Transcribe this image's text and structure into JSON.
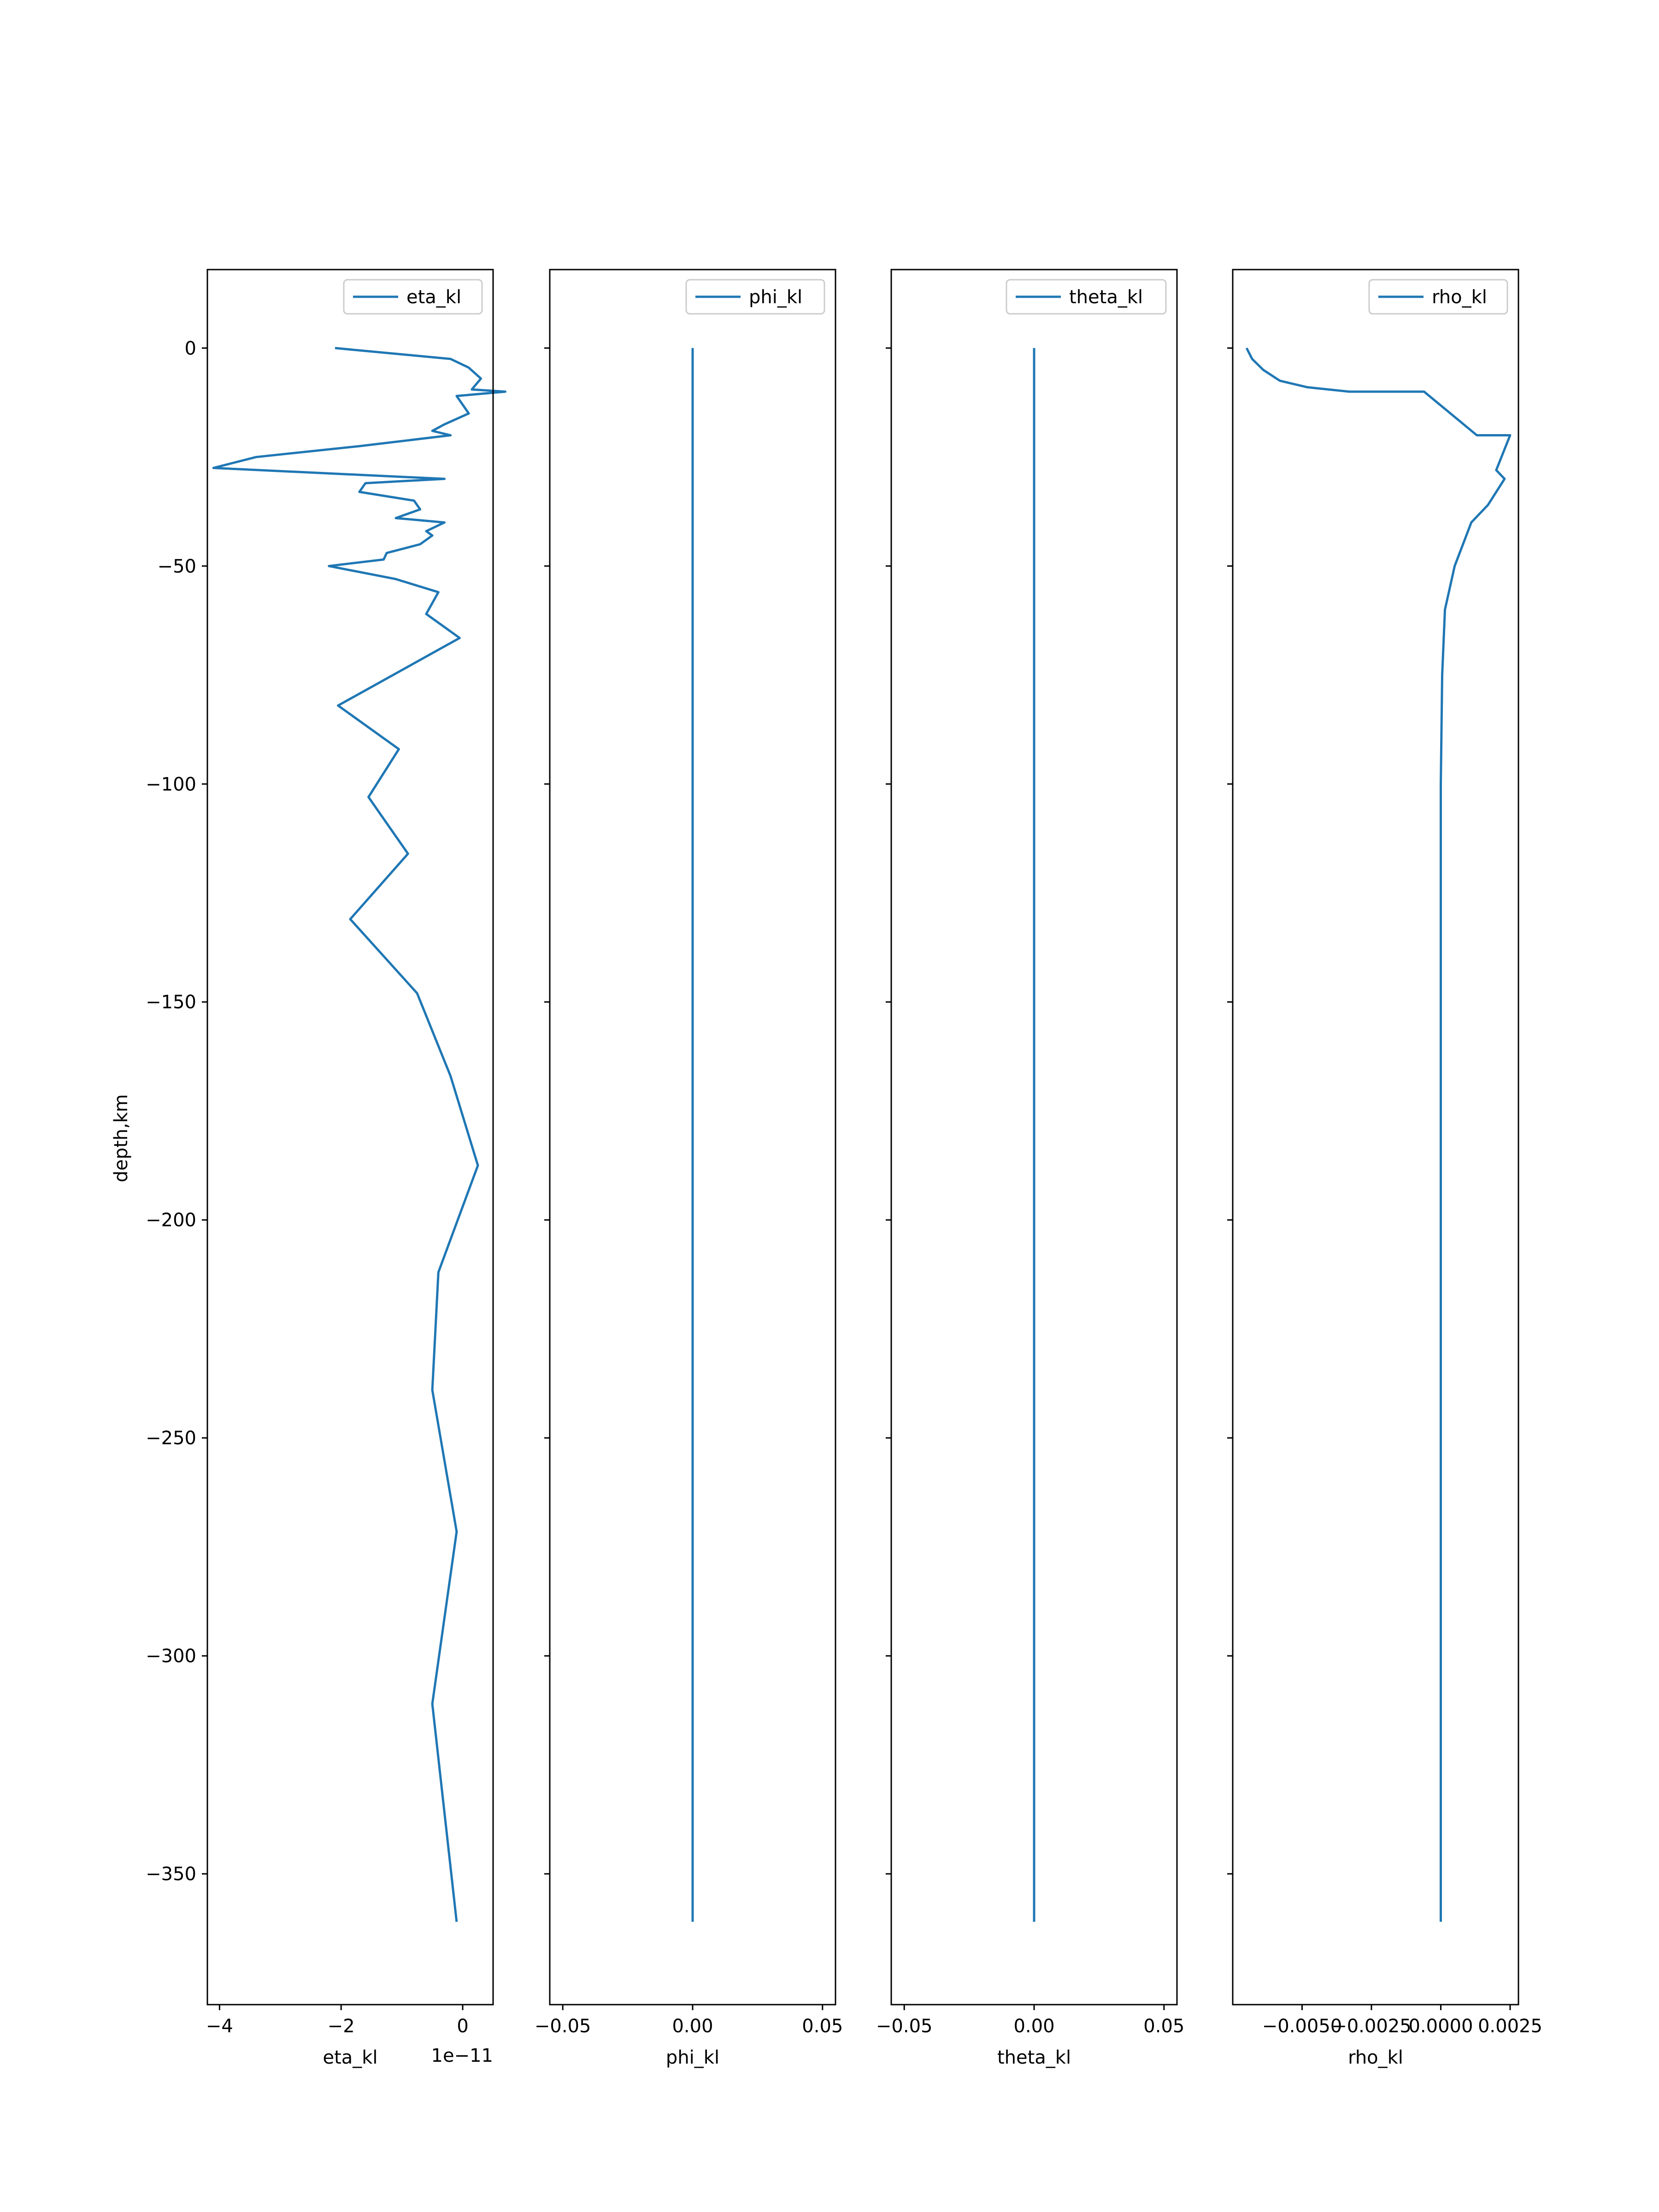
{
  "figure": {
    "ylabel": "depth,km"
  },
  "chart_data": [
    {
      "type": "line",
      "xlabel": "eta_kl",
      "x_offset_text": "1e−11",
      "xlim": [
        -4.2,
        0.5
      ],
      "ylim": [
        -380,
        18
      ],
      "xticks": [
        -4,
        -2,
        0
      ],
      "xtick_labels": [
        "−4",
        "−2",
        "0"
      ],
      "yticks": [
        0,
        -50,
        -100,
        -150,
        -200,
        -250,
        -300,
        -350
      ],
      "ytick_labels": [
        "0",
        "−50",
        "−100",
        "−150",
        "−200",
        "−250",
        "−300",
        "−350"
      ],
      "legend_position": "upper right",
      "color": "#1f77b4",
      "series": [
        {
          "name": "eta_kl",
          "x": [
            -2.1,
            -0.2,
            0.1,
            0.3,
            0.15,
            0.7,
            -0.1,
            0.1,
            -0.3,
            -0.5,
            -0.2,
            -1.7,
            -3.4,
            -4.1,
            -0.3,
            -1.6,
            -1.7,
            -0.8,
            -0.7,
            -1.1,
            -0.3,
            -0.6,
            -0.5,
            -0.7,
            -1.25,
            -1.3,
            -1.6,
            -2.2,
            -1.1,
            -0.4,
            -0.6,
            -0.05,
            -2.05,
            -1.05,
            -1.55,
            -0.9,
            -1.85,
            -0.75,
            -0.2,
            0.25,
            -0.4,
            -0.5,
            -0.1,
            -0.5,
            -0.1
          ],
          "y": [
            0,
            -2.5,
            -4.5,
            -7,
            -9.5,
            -10,
            -11,
            -15,
            -17.5,
            -19,
            -20,
            -22.5,
            -25,
            -27.5,
            -30,
            -31,
            -33,
            -35,
            -37,
            -39,
            -40,
            -42,
            -43,
            -45,
            -47,
            -48.5,
            -49,
            -50,
            -53,
            -56,
            -61,
            -66.5,
            -82,
            -92,
            -103,
            -116,
            -131,
            -148,
            -167,
            -187.5,
            -212,
            -239,
            -271.5,
            -311,
            -361
          ]
        }
      ]
    },
    {
      "type": "line",
      "xlabel": "phi_kl",
      "xlim": [
        -0.055,
        0.055
      ],
      "ylim": [
        -380,
        18
      ],
      "xticks": [
        -0.05,
        0.0,
        0.05
      ],
      "xtick_labels": [
        "−0.05",
        "0.00",
        "0.05"
      ],
      "yticks": [
        0,
        -50,
        -100,
        -150,
        -200,
        -250,
        -300,
        -350
      ],
      "legend_position": "upper right",
      "color": "#1f77b4",
      "series": [
        {
          "name": "phi_kl",
          "x": [
            0,
            0
          ],
          "y": [
            0,
            -361
          ]
        }
      ]
    },
    {
      "type": "line",
      "xlabel": "theta_kl",
      "xlim": [
        -0.055,
        0.055
      ],
      "ylim": [
        -380,
        18
      ],
      "xticks": [
        -0.05,
        0.0,
        0.05
      ],
      "xtick_labels": [
        "−0.05",
        "0.00",
        "0.05"
      ],
      "yticks": [
        0,
        -50,
        -100,
        -150,
        -200,
        -250,
        -300,
        -350
      ],
      "legend_position": "upper right",
      "color": "#1f77b4",
      "series": [
        {
          "name": "theta_kl",
          "x": [
            0,
            0
          ],
          "y": [
            0,
            -361
          ]
        }
      ]
    },
    {
      "type": "line",
      "xlabel": "rho_kl",
      "xlim": [
        -0.0075,
        0.0028
      ],
      "ylim": [
        -380,
        18
      ],
      "xticks": [
        -0.005,
        -0.0025,
        0.0,
        0.0025
      ],
      "xtick_labels": [
        "−0.0050",
        "−0.0025",
        "0.0000",
        "0.0025"
      ],
      "yticks": [
        0,
        -50,
        -100,
        -150,
        -200,
        -250,
        -300,
        -350
      ],
      "legend_position": "upper right",
      "color": "#1f77b4",
      "series": [
        {
          "name": "rho_kl",
          "x": [
            -0.007,
            -0.0068,
            -0.0064,
            -0.0058,
            -0.0048,
            -0.0033,
            -0.0006,
            0.0013,
            0.0025,
            0.002,
            0.0023,
            0.0017,
            0.0011,
            0.0005,
            0.00015,
            5e-05,
            0.0,
            0.0
          ],
          "y": [
            0,
            -2.5,
            -5,
            -7.5,
            -9,
            -10,
            -10,
            -20,
            -20,
            -28,
            -30,
            -36,
            -40,
            -50,
            -60,
            -75,
            -100,
            -361
          ]
        }
      ]
    }
  ]
}
